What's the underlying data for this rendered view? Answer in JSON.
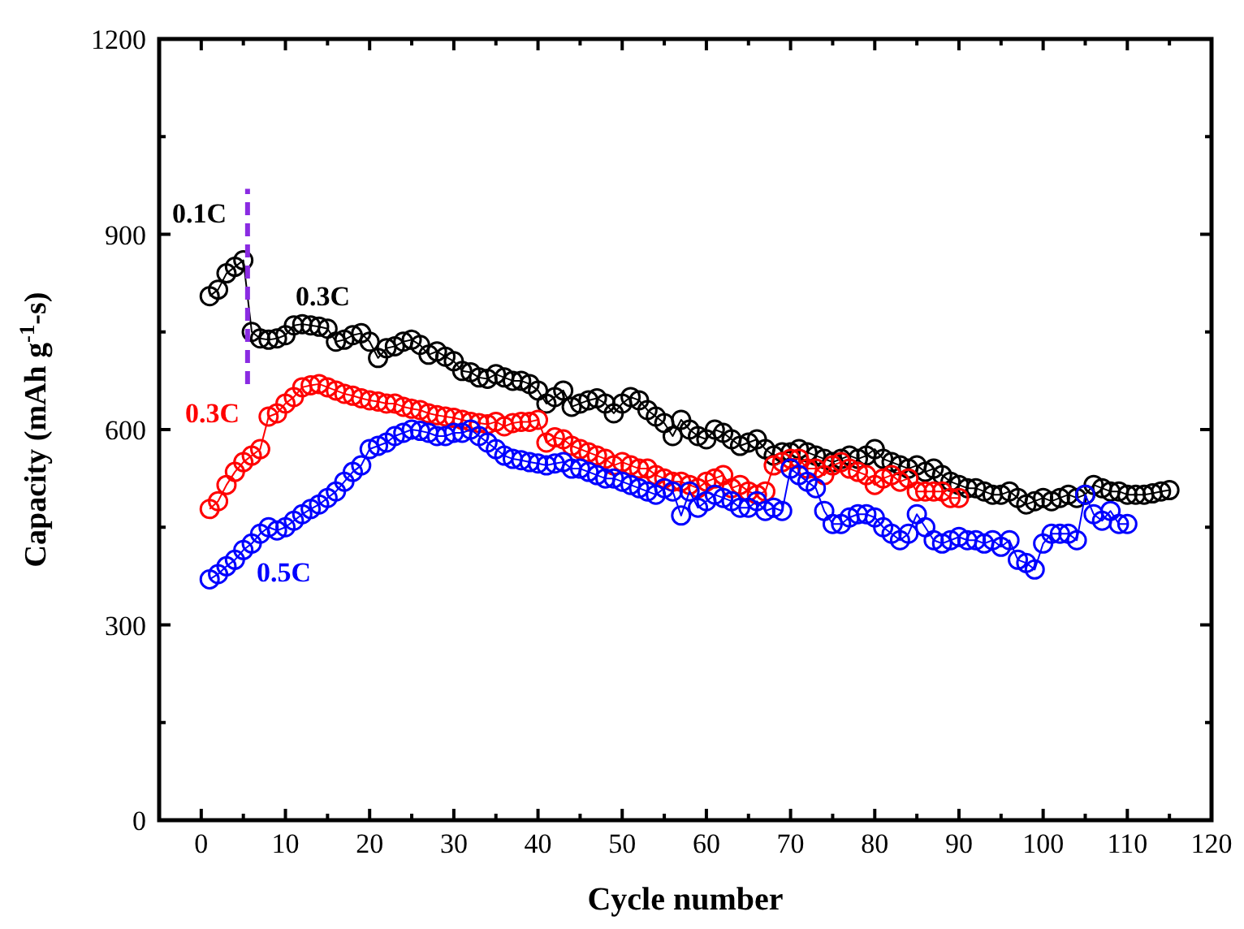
{
  "chart_data": {
    "type": "line",
    "xlabel": "Cycle number",
    "ylabel": "Capacity (mAh g$^{-1}$-s)",
    "xlim": [
      -5,
      120
    ],
    "ylim": [
      0,
      1200
    ],
    "xticks": [
      0,
      {
        "value": 5,
        "label": null
      },
      10,
      {
        "value": 15,
        "label": null
      },
      20,
      {
        "value": 25,
        "label": null
      },
      30,
      {
        "value": 35,
        "label": null
      },
      40,
      {
        "value": 45,
        "label": null
      },
      50,
      {
        "value": 55,
        "label": null
      },
      60,
      {
        "value": 65,
        "label": null
      },
      70,
      {
        "value": 75,
        "label": null
      },
      80,
      {
        "value": 85,
        "label": null
      },
      90,
      {
        "value": 95,
        "label": null
      },
      100,
      {
        "value": 105,
        "label": null
      },
      110,
      {
        "value": 115,
        "label": null
      },
      120
    ],
    "yticks": [
      0,
      {
        "value": 150,
        "label": null
      },
      300,
      {
        "value": 450,
        "label": null
      },
      600,
      {
        "value": 750,
        "label": null
      },
      900,
      {
        "value": 1050,
        "label": null
      },
      1200
    ],
    "marker": "circle",
    "line_style": "solid",
    "grid": false,
    "series": [
      {
        "color": "#000000",
        "x": [
          1,
          2,
          3,
          4,
          5,
          6,
          7,
          8,
          9,
          10,
          11,
          12,
          13,
          14,
          15,
          16,
          17,
          18,
          19,
          20,
          21,
          22,
          23,
          24,
          25,
          26,
          27,
          28,
          29,
          30,
          31,
          32,
          33,
          34,
          35,
          36,
          37,
          38,
          39,
          40,
          41,
          42,
          43,
          44,
          45,
          46,
          47,
          48,
          49,
          50,
          51,
          52,
          53,
          54,
          55,
          56,
          57,
          58,
          59,
          60,
          61,
          62,
          63,
          64,
          65,
          66,
          67,
          68,
          69,
          70,
          71,
          72,
          73,
          74,
          75,
          76,
          77,
          78,
          79,
          80,
          81,
          82,
          83,
          84,
          85,
          86,
          87,
          88,
          89,
          90,
          91,
          92,
          93,
          94,
          95,
          96,
          97,
          98,
          99,
          100,
          101,
          102,
          103,
          104,
          105,
          106,
          107,
          108,
          109,
          110,
          111,
          112,
          113,
          114,
          115
        ],
        "values": [
          805,
          815,
          840,
          850,
          860,
          750,
          740,
          738,
          740,
          745,
          760,
          762,
          760,
          758,
          755,
          735,
          738,
          745,
          748,
          735,
          710,
          725,
          728,
          735,
          738,
          730,
          715,
          720,
          712,
          705,
          690,
          688,
          680,
          678,
          685,
          680,
          675,
          675,
          670,
          660,
          640,
          650,
          660,
          635,
          640,
          645,
          648,
          640,
          625,
          640,
          650,
          645,
          630,
          620,
          610,
          590,
          615,
          600,
          590,
          585,
          600,
          595,
          585,
          575,
          580,
          585,
          570,
          560,
          565,
          565,
          570,
          565,
          560,
          555,
          550,
          555,
          560,
          555,
          560,
          570,
          555,
          550,
          545,
          540,
          545,
          535,
          540,
          530,
          520,
          515,
          510,
          510,
          505,
          500,
          500,
          505,
          495,
          485,
          490,
          495,
          490,
          495,
          500,
          495,
          500,
          515,
          510,
          505,
          505,
          500,
          500,
          500,
          502,
          505,
          507
        ]
      },
      {
        "color": "#ff0000",
        "x": [
          1,
          2,
          3,
          4,
          5,
          6,
          7,
          8,
          9,
          10,
          11,
          12,
          13,
          14,
          15,
          16,
          17,
          18,
          19,
          20,
          21,
          22,
          23,
          24,
          25,
          26,
          27,
          28,
          29,
          30,
          31,
          32,
          33,
          34,
          35,
          36,
          37,
          38,
          39,
          40,
          41,
          42,
          43,
          44,
          45,
          46,
          47,
          48,
          49,
          50,
          51,
          52,
          53,
          54,
          55,
          56,
          57,
          58,
          59,
          60,
          61,
          62,
          63,
          64,
          65,
          66,
          67,
          68,
          69,
          70,
          71,
          72,
          73,
          74,
          75,
          76,
          77,
          78,
          79,
          80,
          81,
          82,
          83,
          84,
          85,
          86,
          87,
          88,
          89,
          90
        ],
        "values": [
          478,
          490,
          515,
          535,
          550,
          560,
          570,
          620,
          625,
          640,
          650,
          665,
          668,
          670,
          665,
          660,
          655,
          652,
          648,
          645,
          643,
          640,
          640,
          635,
          632,
          630,
          625,
          622,
          620,
          618,
          615,
          612,
          610,
          608,
          612,
          605,
          610,
          612,
          612,
          615,
          580,
          588,
          585,
          575,
          570,
          565,
          560,
          555,
          545,
          550,
          545,
          540,
          540,
          530,
          525,
          520,
          520,
          515,
          510,
          520,
          525,
          530,
          510,
          515,
          505,
          500,
          505,
          545,
          550,
          555,
          555,
          540,
          540,
          530,
          545,
          550,
          540,
          535,
          530,
          515,
          525,
          530,
          520,
          525,
          505,
          505,
          505,
          505,
          495,
          495
        ]
      },
      {
        "color": "#0000ff",
        "x": [
          1,
          2,
          3,
          4,
          5,
          6,
          7,
          8,
          9,
          10,
          11,
          12,
          13,
          14,
          15,
          16,
          17,
          18,
          19,
          20,
          21,
          22,
          23,
          24,
          25,
          26,
          27,
          28,
          29,
          30,
          31,
          32,
          33,
          34,
          35,
          36,
          37,
          38,
          39,
          40,
          41,
          42,
          43,
          44,
          45,
          46,
          47,
          48,
          49,
          50,
          51,
          52,
          53,
          54,
          55,
          56,
          57,
          58,
          59,
          60,
          61,
          62,
          63,
          64,
          65,
          66,
          67,
          68,
          69,
          70,
          71,
          72,
          73,
          74,
          75,
          76,
          77,
          78,
          79,
          80,
          81,
          82,
          83,
          84,
          85,
          86,
          87,
          88,
          89,
          90,
          91,
          92,
          93,
          94,
          95,
          96,
          97,
          98,
          99,
          100,
          101,
          102,
          103,
          104,
          105,
          106,
          107,
          108,
          109,
          110
        ],
        "values": [
          370,
          378,
          390,
          400,
          415,
          425,
          440,
          450,
          445,
          450,
          460,
          470,
          478,
          485,
          495,
          505,
          520,
          535,
          545,
          570,
          575,
          580,
          590,
          595,
          600,
          598,
          595,
          590,
          590,
          595,
          595,
          600,
          590,
          580,
          570,
          560,
          555,
          553,
          550,
          548,
          545,
          548,
          550,
          540,
          540,
          535,
          530,
          525,
          525,
          520,
          515,
          510,
          505,
          500,
          510,
          505,
          468,
          505,
          480,
          490,
          500,
          495,
          490,
          480,
          480,
          490,
          475,
          480,
          475,
          540,
          530,
          520,
          510,
          475,
          455,
          455,
          465,
          470,
          470,
          465,
          450,
          440,
          430,
          440,
          470,
          450,
          430,
          425,
          430,
          435,
          430,
          430,
          425,
          430,
          420,
          430,
          400,
          395,
          385,
          425,
          440,
          440,
          440,
          430,
          500,
          470,
          460,
          475,
          455,
          455
        ]
      }
    ],
    "ref_lines": [
      {
        "axis": "x",
        "value": 5.5,
        "color": "#8a2be2",
        "line_style": "dashed"
      }
    ],
    "annotations": [
      "0.1C",
      "0.3C",
      "0.3C",
      "0.5C"
    ]
  }
}
